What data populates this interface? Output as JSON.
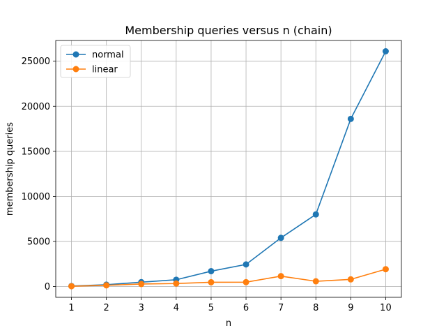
{
  "chart_data": {
    "type": "line",
    "title": "Membership queries versus n (chain)",
    "xlabel": "n",
    "ylabel": "membership queries",
    "x": [
      1,
      2,
      3,
      4,
      5,
      6,
      7,
      8,
      9,
      10
    ],
    "xlim": [
      0.55,
      10.45
    ],
    "ylim": [
      -1200,
      27300
    ],
    "xticks": [
      1,
      2,
      3,
      4,
      5,
      6,
      7,
      8,
      9,
      10
    ],
    "yticks": [
      0,
      5000,
      10000,
      15000,
      20000,
      25000
    ],
    "grid": true,
    "legend_position": "top-left",
    "series": [
      {
        "name": "normal",
        "color": "#1f77b4",
        "values": [
          50,
          200,
          480,
          750,
          1700,
          2450,
          5400,
          8000,
          18600,
          26100
        ]
      },
      {
        "name": "linear",
        "color": "#ff7f0e",
        "values": [
          30,
          130,
          280,
          330,
          470,
          480,
          1150,
          580,
          790,
          1920
        ]
      }
    ]
  }
}
